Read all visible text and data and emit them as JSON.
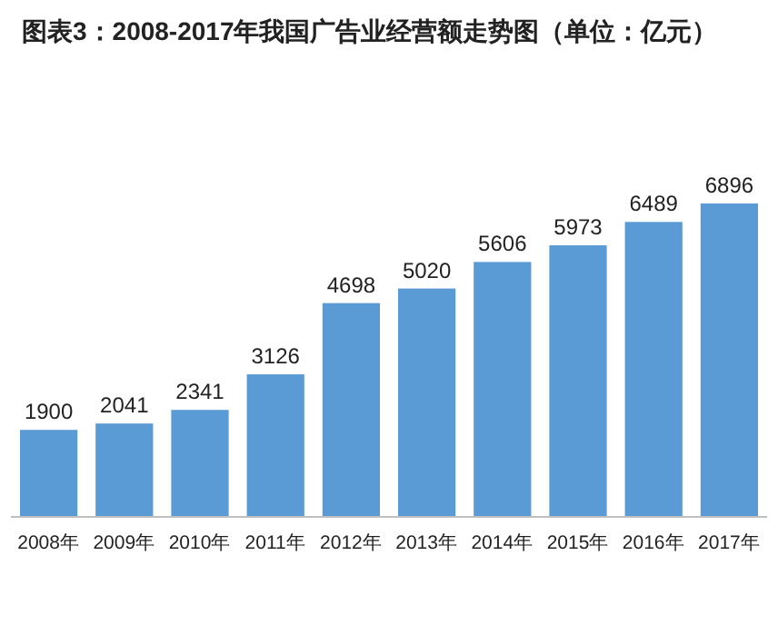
{
  "chart_data": {
    "type": "bar",
    "title": "图表3：2008-2017年我国广告业经营额走势图（单位：亿元）",
    "categories": [
      "2008年",
      "2009年",
      "2010年",
      "2011年",
      "2012年",
      "2013年",
      "2014年",
      "2015年",
      "2016年",
      "2017年"
    ],
    "values": [
      1900,
      2041,
      2341,
      3126,
      4698,
      5020,
      5606,
      5973,
      6489,
      6896
    ],
    "color": "#5b9bd5",
    "data_labels": true,
    "grid": false,
    "legend": false
  }
}
